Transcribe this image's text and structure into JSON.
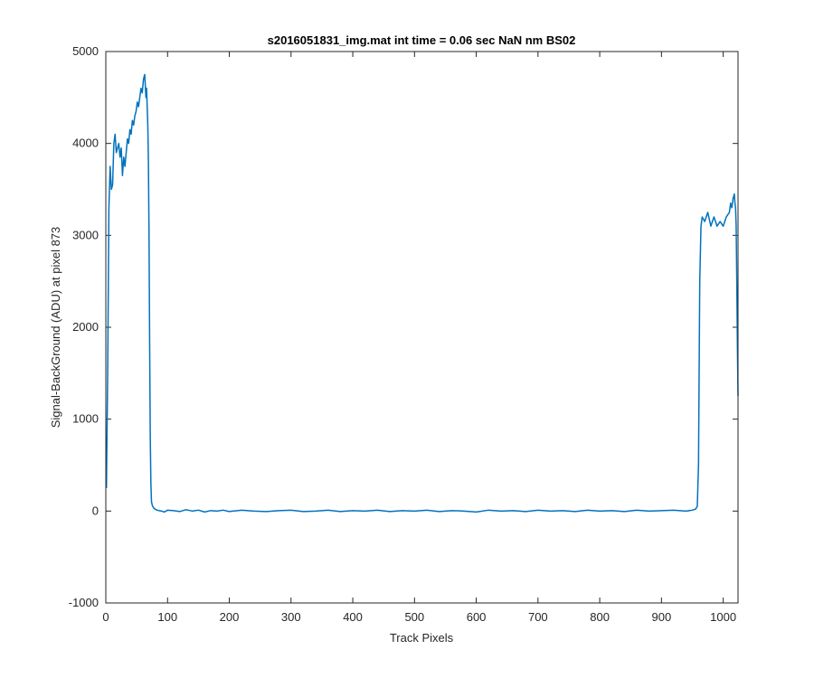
{
  "chart_data": {
    "type": "line",
    "title": "s2016051831_img.mat int time = 0.06 sec  NaN nm BS02",
    "xlabel": "Track Pixels",
    "ylabel": "Signal-BackGround (ADU) at pixel 873",
    "xlim": [
      0,
      1024
    ],
    "ylim": [
      -1000,
      5000
    ],
    "xticks": [
      0,
      100,
      200,
      300,
      400,
      500,
      600,
      700,
      800,
      900,
      1000
    ],
    "yticks": [
      -1000,
      0,
      1000,
      2000,
      3000,
      4000,
      5000
    ],
    "x_tick_labels": [
      "0",
      "100",
      "200",
      "300",
      "400",
      "500",
      "600",
      "700",
      "800",
      "900",
      "1000"
    ],
    "y_tick_labels": [
      "-1000",
      "0",
      "1000",
      "2000",
      "3000",
      "4000",
      "5000"
    ],
    "grid": false,
    "box": true,
    "series_color": "#0072BD",
    "series": [
      {
        "x": [
          1,
          3,
          5,
          7,
          9,
          11,
          13,
          15,
          17,
          19,
          21,
          23,
          25,
          27,
          29,
          31,
          33,
          35,
          37,
          39,
          41,
          43,
          45,
          47,
          49,
          51,
          53,
          55,
          57,
          59,
          61,
          63,
          65,
          66,
          67,
          68,
          69,
          70,
          71,
          72,
          73,
          74,
          75,
          76,
          78,
          80,
          83,
          86,
          90,
          95,
          100,
          110,
          120,
          130,
          140,
          150,
          160,
          170,
          180,
          190,
          200,
          220,
          240,
          260,
          280,
          300,
          320,
          340,
          360,
          380,
          400,
          420,
          440,
          460,
          480,
          500,
          520,
          540,
          560,
          580,
          600,
          620,
          640,
          660,
          680,
          700,
          720,
          740,
          760,
          780,
          800,
          820,
          840,
          860,
          880,
          900,
          920,
          940,
          950,
          955,
          958,
          960,
          962,
          964,
          966,
          970,
          975,
          980,
          985,
          990,
          995,
          1000,
          1005,
          1010,
          1012,
          1014,
          1016,
          1018,
          1019,
          1020,
          1021,
          1022,
          1023,
          1024
        ],
        "values": [
          250,
          1500,
          3300,
          3750,
          3500,
          3550,
          4000,
          4100,
          3900,
          3950,
          4000,
          3850,
          3950,
          3650,
          3850,
          3750,
          3900,
          4050,
          4000,
          4150,
          4100,
          4250,
          4200,
          4300,
          4350,
          4450,
          4400,
          4500,
          4600,
          4550,
          4700,
          4750,
          4500,
          4600,
          4400,
          4200,
          3800,
          3000,
          1800,
          800,
          300,
          100,
          70,
          50,
          30,
          20,
          10,
          5,
          0,
          -10,
          10,
          5,
          -5,
          15,
          0,
          10,
          -10,
          5,
          0,
          10,
          -5,
          10,
          0,
          -5,
          5,
          10,
          -5,
          0,
          10,
          -5,
          5,
          0,
          10,
          -5,
          5,
          0,
          10,
          -5,
          5,
          0,
          -10,
          10,
          0,
          5,
          -5,
          10,
          0,
          5,
          -5,
          10,
          0,
          5,
          -5,
          10,
          0,
          5,
          10,
          0,
          10,
          20,
          50,
          500,
          2500,
          3100,
          3200,
          3150,
          3250,
          3100,
          3200,
          3100,
          3150,
          3100,
          3200,
          3250,
          3350,
          3300,
          3400,
          3450,
          3350,
          3300,
          3100,
          2500,
          1800,
          1250
        ]
      }
    ]
  }
}
